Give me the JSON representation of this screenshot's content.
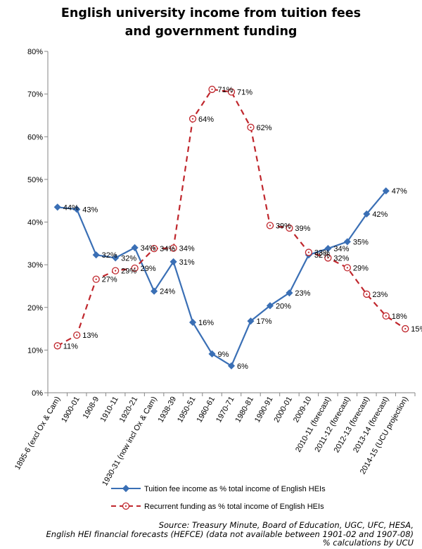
{
  "chart_data": {
    "type": "line",
    "title_lines": [
      "English university income from tuition fees",
      "and government funding"
    ],
    "categories": [
      "1895-6 (excl Ox & Cam)",
      "1900-01",
      "1908-9",
      "1910-11",
      "1920-21",
      "1930-31 (now incl Ox & Cam)",
      "1938-39",
      "1950-51",
      "1960-61",
      "1970-71",
      "1980-81",
      "1990-91",
      "2000-01",
      "2009-10",
      "2010-11 (forecast)",
      "2011-12 (forecast)",
      "2012-13 (forecast)",
      "2013-14 (forecast)",
      "2014-15 (UCU projection)"
    ],
    "y_ticks": [
      "0%",
      "10%",
      "20%",
      "30%",
      "40%",
      "50%",
      "60%",
      "70%",
      "80%"
    ],
    "ylim": [
      0,
      80
    ],
    "series": [
      {
        "name": "Tuition fee income as % total income of English HEIs",
        "color": "#3A6FB5",
        "marker": "diamond",
        "line": "solid",
        "values": [
          43.5,
          43,
          32.3,
          31.6,
          34,
          23.8,
          30.7,
          16.5,
          9.1,
          6.3,
          16.8,
          20.4,
          23.4,
          32.3,
          33.8,
          35.4,
          41.9,
          47.3,
          null
        ],
        "labels": [
          "44%",
          "43%",
          "32%",
          "32%",
          "34%",
          "24%",
          "31%",
          "16%",
          "9%",
          "6%",
          "17%",
          "20%",
          "23%",
          "32%",
          "34%",
          "35%",
          "42%",
          "47%",
          null
        ]
      },
      {
        "name": "Recurrent funding as % total income of English HEIs",
        "color": "#C0272D",
        "marker": "circle-dot",
        "line": "dashed",
        "values": [
          11,
          13.5,
          26.6,
          28.6,
          29.2,
          33.8,
          33.9,
          64.2,
          71.1,
          70.5,
          62.2,
          39.2,
          38.6,
          32.9,
          31.6,
          29.3,
          23.1,
          18,
          15
        ],
        "labels": [
          "11%",
          "13%",
          "27%",
          "29%",
          "29%",
          "34%",
          "34%",
          "64%",
          "71%",
          "71%",
          "62%",
          "39%",
          "39%",
          "33%",
          "32%",
          "29%",
          "23%",
          "18%",
          "15%"
        ]
      }
    ],
    "grid": false,
    "legend_position": "bottom",
    "source_lines": [
      "Source: Treasury Minute, Board of Education, UGC, UFC, HESA,",
      "English HEI financial forecasts (HEFCE) (data not available between 1901-02 and 1907-08)",
      "% calculations by UCU"
    ]
  }
}
